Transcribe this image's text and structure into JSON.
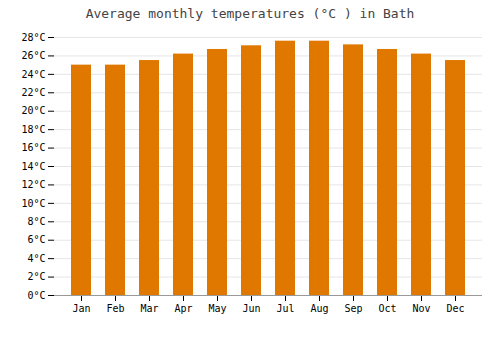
{
  "chart_data": {
    "type": "bar",
    "title": "Average monthly temperatures (°C ) in Bath",
    "categories": [
      "Jan",
      "Feb",
      "Mar",
      "Apr",
      "May",
      "Jun",
      "Jul",
      "Aug",
      "Sep",
      "Oct",
      "Nov",
      "Dec"
    ],
    "values": [
      25.0,
      25.0,
      25.5,
      26.2,
      26.7,
      27.1,
      27.6,
      27.6,
      27.2,
      26.7,
      26.2,
      25.5
    ],
    "color": "#E07800",
    "ylim": [
      0,
      28
    ],
    "yticks": [
      {
        "value": 0,
        "label": "0°C"
      },
      {
        "value": 2,
        "label": "2°C"
      },
      {
        "value": 4,
        "label": "4°C"
      },
      {
        "value": 6,
        "label": "6°C"
      },
      {
        "value": 8,
        "label": "8°C"
      },
      {
        "value": 10,
        "label": "10°C"
      },
      {
        "value": 12,
        "label": "12°C"
      },
      {
        "value": 14,
        "label": "14°C"
      },
      {
        "value": 16,
        "label": "16°C"
      },
      {
        "value": 18,
        "label": "18°C"
      },
      {
        "value": 20,
        "label": "20°C"
      },
      {
        "value": 22,
        "label": "22°C"
      },
      {
        "value": 24,
        "label": "24°C"
      },
      {
        "value": 26,
        "label": "26°C"
      },
      {
        "value": 28,
        "label": "28°C"
      }
    ],
    "grid": true
  }
}
